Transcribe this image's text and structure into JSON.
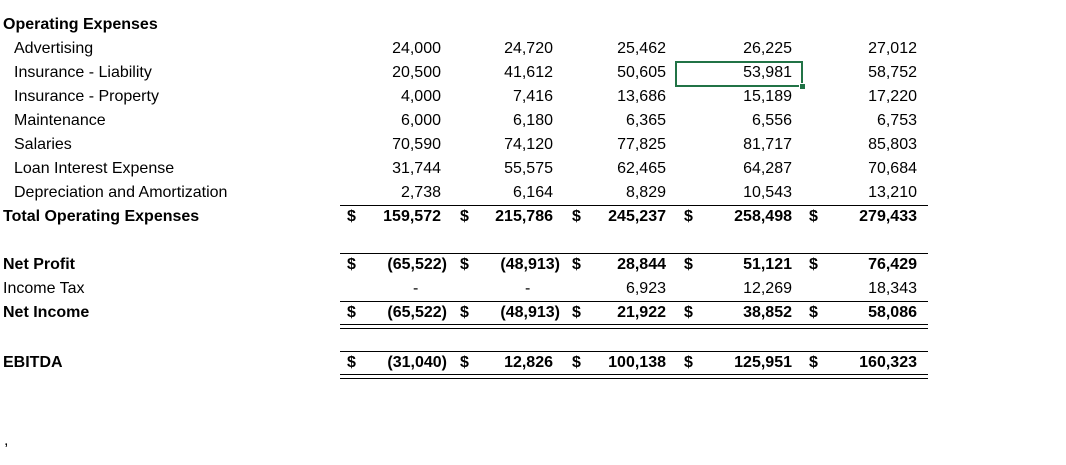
{
  "header": {
    "label": "Operating Expenses"
  },
  "expenses": [
    {
      "label": "Advertising",
      "values": [
        "24,000",
        "24,720",
        "25,462",
        "26,225",
        "27,012"
      ]
    },
    {
      "label": "Insurance - Liability",
      "values": [
        "20,500",
        "41,612",
        "50,605",
        "53,981",
        "58,752"
      ]
    },
    {
      "label": "Insurance - Property",
      "values": [
        "4,000",
        "7,416",
        "13,686",
        "15,189",
        "17,220"
      ]
    },
    {
      "label": "Maintenance",
      "values": [
        "6,000",
        "6,180",
        "6,365",
        "6,556",
        "6,753"
      ]
    },
    {
      "label": "Salaries",
      "values": [
        "70,590",
        "74,120",
        "77,825",
        "81,717",
        "85,803"
      ]
    },
    {
      "label": "Loan Interest Expense",
      "values": [
        "31,744",
        "55,575",
        "62,465",
        "64,287",
        "70,684"
      ]
    },
    {
      "label": "Depreciation and Amortization",
      "values": [
        "2,738",
        "6,164",
        "8,829",
        "10,543",
        "13,210"
      ]
    }
  ],
  "total_operating": {
    "label": "Total Operating Expenses",
    "currency": "$",
    "values": [
      "159,572",
      "215,786",
      "245,237",
      "258,498",
      "279,433"
    ]
  },
  "net_profit": {
    "label": "Net Profit",
    "currency": "$",
    "values": [
      "(65,522)",
      "(48,913)",
      "28,844",
      "51,121",
      "76,429"
    ]
  },
  "income_tax": {
    "label": "Income Tax",
    "values": [
      "-",
      "-",
      "6,923",
      "12,269",
      "18,343"
    ]
  },
  "net_income": {
    "label": "Net Income",
    "currency": "$",
    "values": [
      "(65,522)",
      "(48,913)",
      "21,922",
      "38,852",
      "58,086"
    ]
  },
  "ebitda": {
    "label": "EBITDA",
    "currency": "$",
    "values": [
      "(31,040)",
      "12,826",
      "100,138",
      "125,951",
      "160,323"
    ]
  },
  "selected_cell": {
    "value": "53,981"
  },
  "stray_mark": ","
}
